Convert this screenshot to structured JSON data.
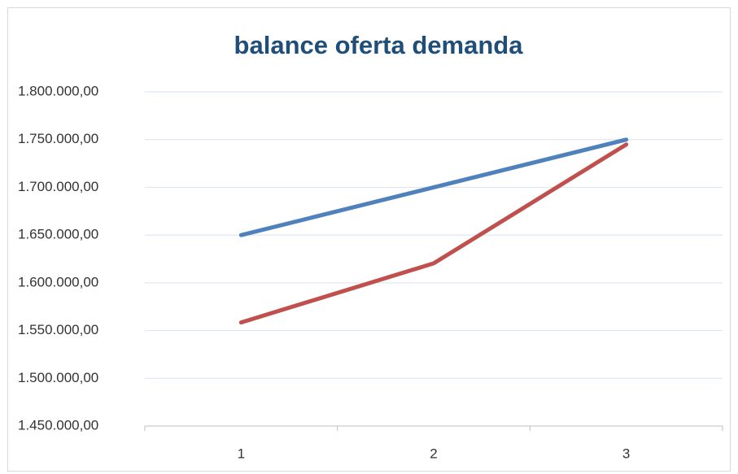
{
  "chart_data": {
    "type": "line",
    "title": "balance oferta demanda",
    "categories": [
      "1",
      "2",
      "3"
    ],
    "series": [
      {
        "color": "#4f81bd",
        "values": [
          1650000,
          1700000,
          1750000
        ]
      },
      {
        "color": "#c0504d",
        "values": [
          1558500,
          1620400,
          1744900
        ]
      }
    ],
    "ylim": [
      1450000,
      1800000
    ],
    "yticks": [
      {
        "value": 1450000,
        "label": "1.450.000,00"
      },
      {
        "value": 1500000,
        "label": "1.500.000,00"
      },
      {
        "value": 1550000,
        "label": "1.550.000,00"
      },
      {
        "value": 1600000,
        "label": "1.600.000,00"
      },
      {
        "value": 1650000,
        "label": "1.650.000,00"
      },
      {
        "value": 1700000,
        "label": "1.700.000,00"
      },
      {
        "value": 1750000,
        "label": "1.750.000,00"
      },
      {
        "value": 1800000,
        "label": "1.800.000,00"
      }
    ],
    "grid": true
  }
}
